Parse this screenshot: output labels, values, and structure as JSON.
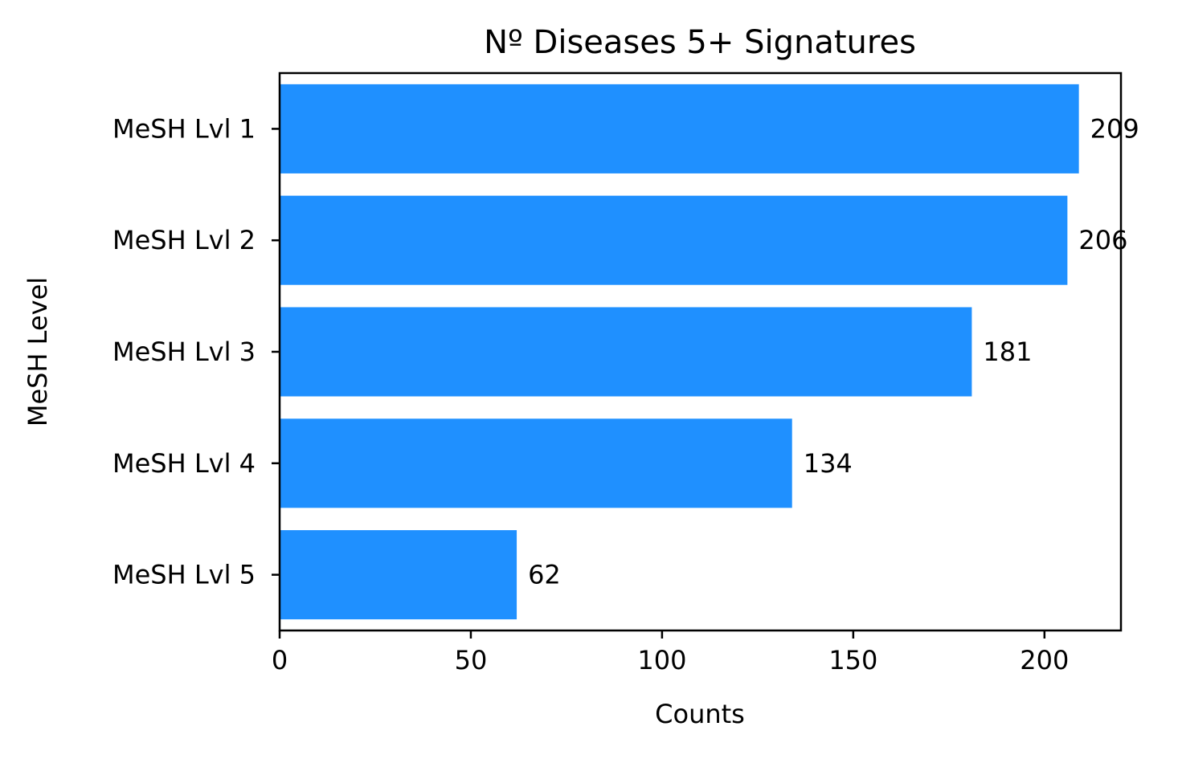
{
  "chart_data": {
    "type": "bar",
    "orientation": "horizontal",
    "title": "Nº Diseases 5+ Signatures",
    "xlabel": "Counts",
    "ylabel": "MeSH Level",
    "categories": [
      "MeSH Lvl 1",
      "MeSH Lvl 2",
      "MeSH Lvl 3",
      "MeSH Lvl 4",
      "MeSH Lvl 5"
    ],
    "values": [
      209,
      206,
      181,
      134,
      62
    ],
    "data_labels": [
      "209",
      "206",
      "181",
      "134",
      "62"
    ],
    "xlim": [
      0,
      220
    ],
    "xticks": [
      0,
      50,
      100,
      150,
      200
    ],
    "xtick_labels": [
      "0",
      "50",
      "100",
      "150",
      "200"
    ],
    "grid": false,
    "legend": false,
    "bar_color": "#1f90ff"
  }
}
